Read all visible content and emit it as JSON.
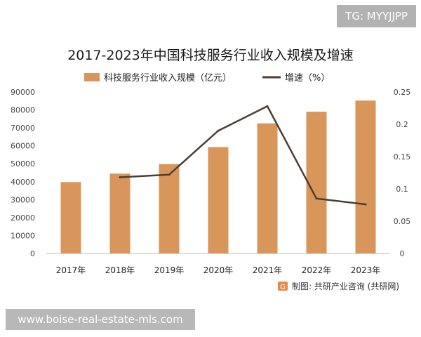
{
  "overlay": {
    "tag_text": "TG: MYYJJPP",
    "url_text": "www.boise-real-estate-mls.com"
  },
  "colors": {
    "bar": "#d9965a",
    "line": "#4d3e35"
  },
  "source_text": "制图: 共研产业咨询 (共研网)",
  "chart_data": {
    "type": "bar",
    "title": "2017-2023年中国科技服务行业收入规模及增速",
    "categories": [
      "2017年",
      "2018年",
      "2019年",
      "2020年",
      "2021年",
      "2022年",
      "2023年"
    ],
    "series": [
      {
        "name": "科技服务行业收入规模（亿元）",
        "type": "bar",
        "axis": "left",
        "values": [
          39800,
          44500,
          49800,
          59300,
          72500,
          79000,
          85200
        ]
      },
      {
        "name": "增速（%）",
        "type": "line",
        "axis": "right",
        "values": [
          null,
          0.118,
          0.122,
          0.19,
          0.228,
          0.085,
          0.076
        ]
      }
    ],
    "y_left": {
      "range": [
        0,
        90000
      ],
      "ticks": [
        "0",
        "10000",
        "20000",
        "30000",
        "40000",
        "50000",
        "60000",
        "70000",
        "80000",
        "90000"
      ]
    },
    "y_right": {
      "range": [
        0,
        0.25
      ],
      "ticks": [
        "0",
        "0.05",
        "0.1",
        "0.15",
        "0.2",
        "0.25"
      ]
    },
    "grid": false,
    "legend": "top"
  }
}
